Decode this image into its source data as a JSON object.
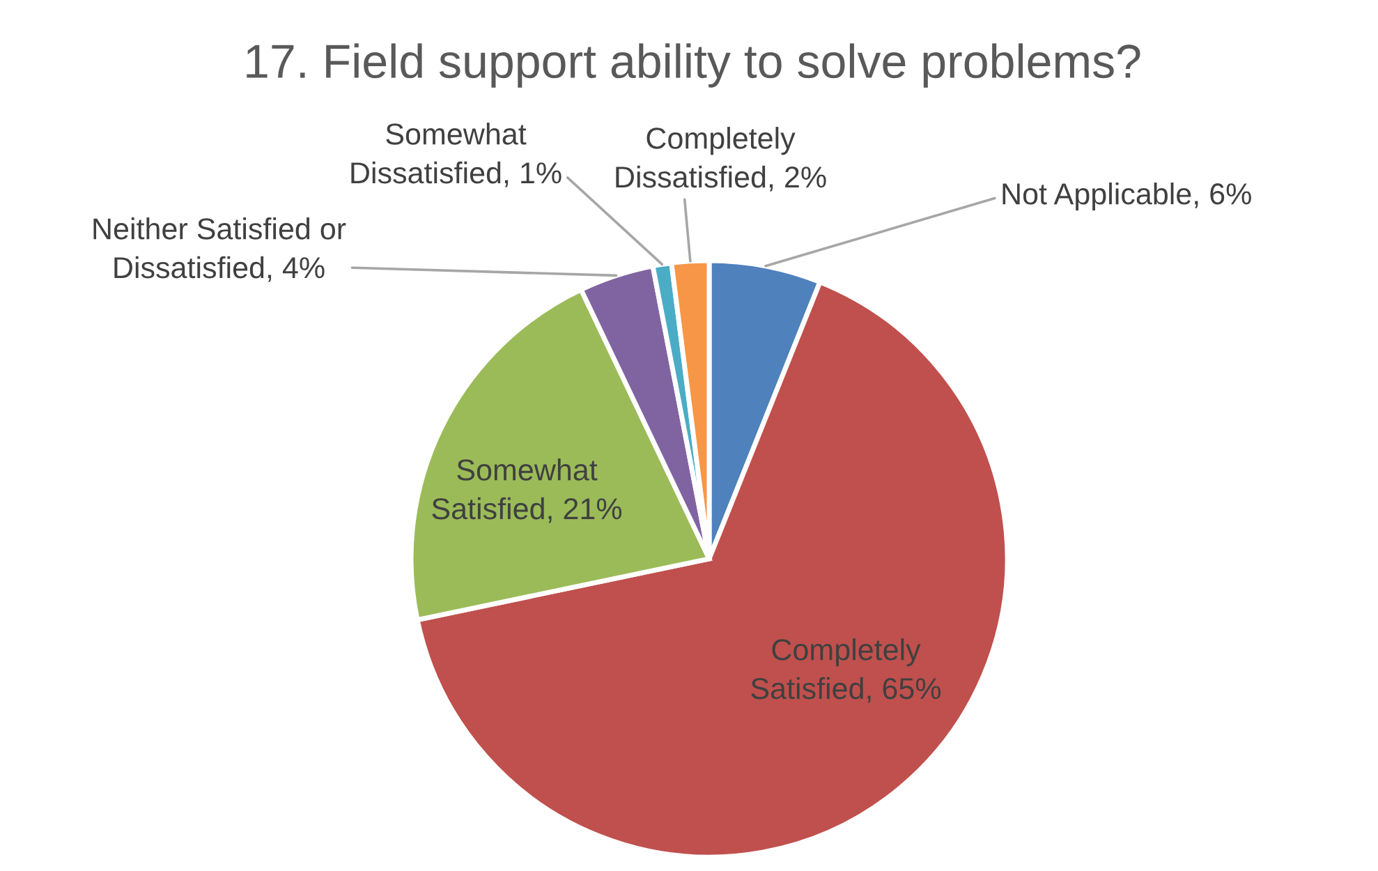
{
  "chart_data": {
    "type": "pie",
    "title": "17. Field support ability to solve problems?",
    "categories": [
      "Not Applicable",
      "Completely Satisfied",
      "Somewhat Satisfied",
      "Neither Satisfied or Dissatisfied",
      "Somewhat Dissatisfied",
      "Completely Dissatisfied"
    ],
    "values": [
      6,
      65,
      21,
      4,
      1,
      2
    ],
    "colors": [
      "#4f81bd",
      "#c0504d",
      "#9bbb59",
      "#8064a2",
      "#4bacc6",
      "#f79646"
    ],
    "value_labels": [
      "6%",
      "65%",
      "21%",
      "4%",
      "1%",
      "2%"
    ]
  }
}
